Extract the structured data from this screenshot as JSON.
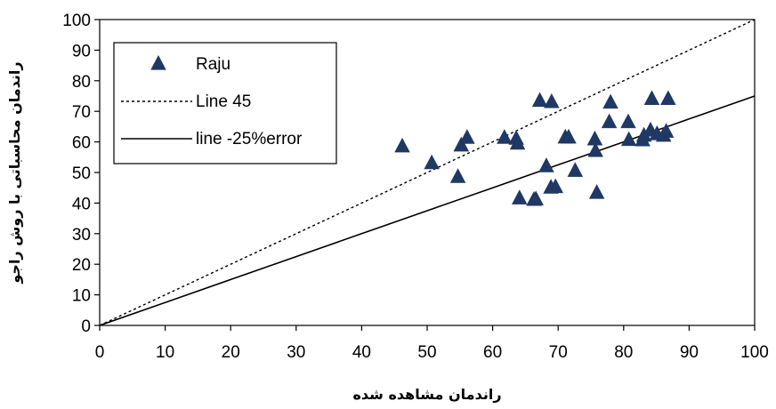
{
  "chart_data": {
    "type": "scatter",
    "title": "",
    "xlabel": "راندمان مشاهده شده",
    "ylabel": "راندمان محاسباتی با روش راجو",
    "xlim": [
      0,
      100
    ],
    "ylim": [
      0,
      100
    ],
    "xticks": [
      "0",
      "10",
      "20",
      "30",
      "40",
      "50",
      "60",
      "70",
      "80",
      "90",
      "100"
    ],
    "yticks": [
      "0",
      "10",
      "20",
      "30",
      "40",
      "50",
      "60",
      "70",
      "80",
      "90",
      "100"
    ],
    "grid": false,
    "legend_position": "top-left",
    "colors": {
      "points": "#1f3864",
      "lines": "#000000"
    },
    "series": [
      {
        "name": "Raju",
        "kind": "scatter",
        "marker": "triangle",
        "points": [
          [
            46.2,
            58.5
          ],
          [
            50.7,
            53
          ],
          [
            54.7,
            48.5
          ],
          [
            55.2,
            58.8
          ],
          [
            56.1,
            61.3
          ],
          [
            61.8,
            61.3
          ],
          [
            63.6,
            61
          ],
          [
            63.8,
            59.4
          ],
          [
            64.1,
            41.5
          ],
          [
            66.3,
            41
          ],
          [
            66.6,
            41.2
          ],
          [
            67.2,
            73.4
          ],
          [
            68.2,
            52
          ],
          [
            68.9,
            45
          ],
          [
            69,
            73
          ],
          [
            69.6,
            45.2
          ],
          [
            71.1,
            61.4
          ],
          [
            71.6,
            61.4
          ],
          [
            72.6,
            50.5
          ],
          [
            75.6,
            60.8
          ],
          [
            75.7,
            57
          ],
          [
            75.9,
            43.3
          ],
          [
            77.8,
            66.4
          ],
          [
            78,
            72.8
          ],
          [
            80.7,
            66.4
          ],
          [
            80.8,
            60.6
          ],
          [
            82.9,
            60.5
          ],
          [
            83.1,
            62
          ],
          [
            84.1,
            63.7
          ],
          [
            84.3,
            74
          ],
          [
            85.1,
            62.5
          ],
          [
            86.1,
            62
          ],
          [
            86.5,
            63.3
          ],
          [
            86.8,
            74
          ]
        ]
      },
      {
        "name": "Line 45",
        "kind": "line",
        "style": "dotted",
        "points": [
          [
            0,
            0
          ],
          [
            100,
            100
          ]
        ]
      },
      {
        "name": "line -25%error",
        "kind": "line",
        "style": "solid",
        "points": [
          [
            0,
            0
          ],
          [
            10,
            7.5
          ],
          [
            20,
            15
          ],
          [
            30,
            22.5
          ],
          [
            40,
            30
          ],
          [
            50,
            37.5
          ],
          [
            60,
            45
          ],
          [
            70,
            52.5
          ],
          [
            80,
            60
          ],
          [
            90,
            67.5
          ],
          [
            100,
            75
          ]
        ]
      }
    ]
  }
}
